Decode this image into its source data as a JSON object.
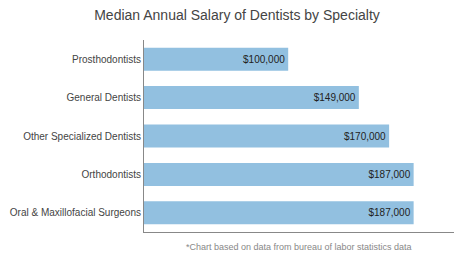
{
  "chart_data": {
    "type": "bar",
    "orientation": "horizontal",
    "title": "Median Annual Salary of Dentists by Specialty",
    "categories": [
      "Oral & Maxillofacial Surgeons",
      "Orthodontists",
      "Other Specialized Dentists",
      "General Dentists",
      "Prosthodontists"
    ],
    "values": [
      187000,
      187000,
      170000,
      149000,
      100000
    ],
    "value_labels": [
      "$187,000",
      "$187,000",
      "$170,000",
      "$149,000",
      "$100,000"
    ],
    "data_labels": true,
    "color": "#92c0e0",
    "xlim": [
      0,
      215000
    ],
    "tick_labels": "y",
    "grid": false,
    "annotations": [
      "*Chart based on data from bureau of labor statistics data"
    ]
  }
}
